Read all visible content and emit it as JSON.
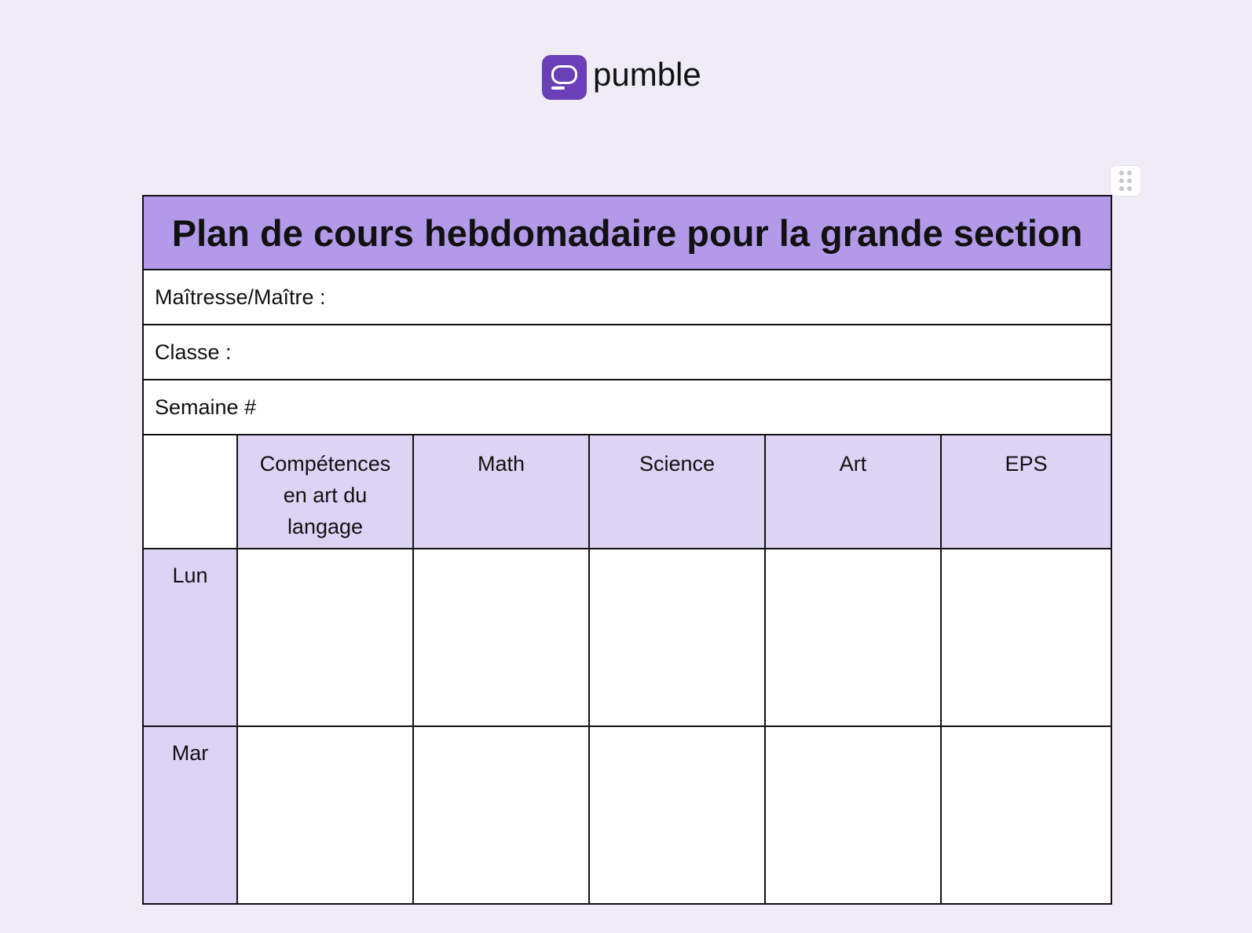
{
  "brand": {
    "name": "pumble",
    "logo_color": "#6a3fb8"
  },
  "drag_handle": {
    "icon": "drag-handle-icon"
  },
  "document": {
    "title": "Plan de cours hebdomadaire pour la grande section",
    "fields": [
      {
        "label": "Maîtresse/Maître :"
      },
      {
        "label": "Classe :"
      },
      {
        "label": "Semaine #"
      }
    ],
    "columns": [
      "Compétences en art du langage",
      "Math",
      "Science",
      "Art",
      "EPS"
    ],
    "days": [
      "Lun",
      "Mar"
    ],
    "colors": {
      "title_bg": "#b39ae9",
      "header_bg": "#ddd4f5",
      "page_bg": "#efecf8"
    }
  }
}
